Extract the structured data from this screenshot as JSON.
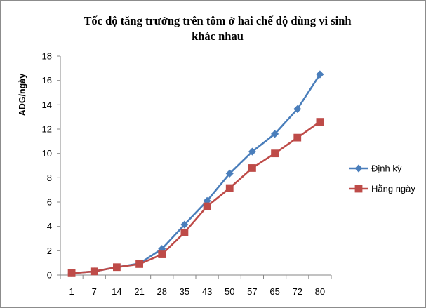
{
  "chart_data": {
    "type": "line",
    "title_lines": [
      "Tốc độ tăng trưởng trên tôm ở hai chế độ dùng vi sinh",
      "khác nhau"
    ],
    "xlabel": "",
    "ylabel": "ADG/ngày",
    "categories": [
      "1",
      "7",
      "14",
      "21",
      "28",
      "35",
      "43",
      "50",
      "57",
      "65",
      "72",
      "80"
    ],
    "ylim": [
      0,
      18
    ],
    "yticks": [
      0,
      2,
      4,
      6,
      8,
      10,
      12,
      14,
      16,
      18
    ],
    "grid": false,
    "legend_position": "right",
    "series": [
      {
        "name": "Định kỳ",
        "color": "#4a7ebb",
        "marker": "diamond",
        "values": [
          0.15,
          0.3,
          0.65,
          0.95,
          2.15,
          4.15,
          6.1,
          8.35,
          10.15,
          11.6,
          13.65,
          16.5
        ]
      },
      {
        "name": "Hằng ngày",
        "color": "#be4b48",
        "marker": "square",
        "values": [
          0.15,
          0.3,
          0.65,
          0.9,
          1.7,
          3.5,
          5.65,
          7.15,
          8.8,
          10.0,
          11.3,
          12.6
        ]
      }
    ]
  }
}
